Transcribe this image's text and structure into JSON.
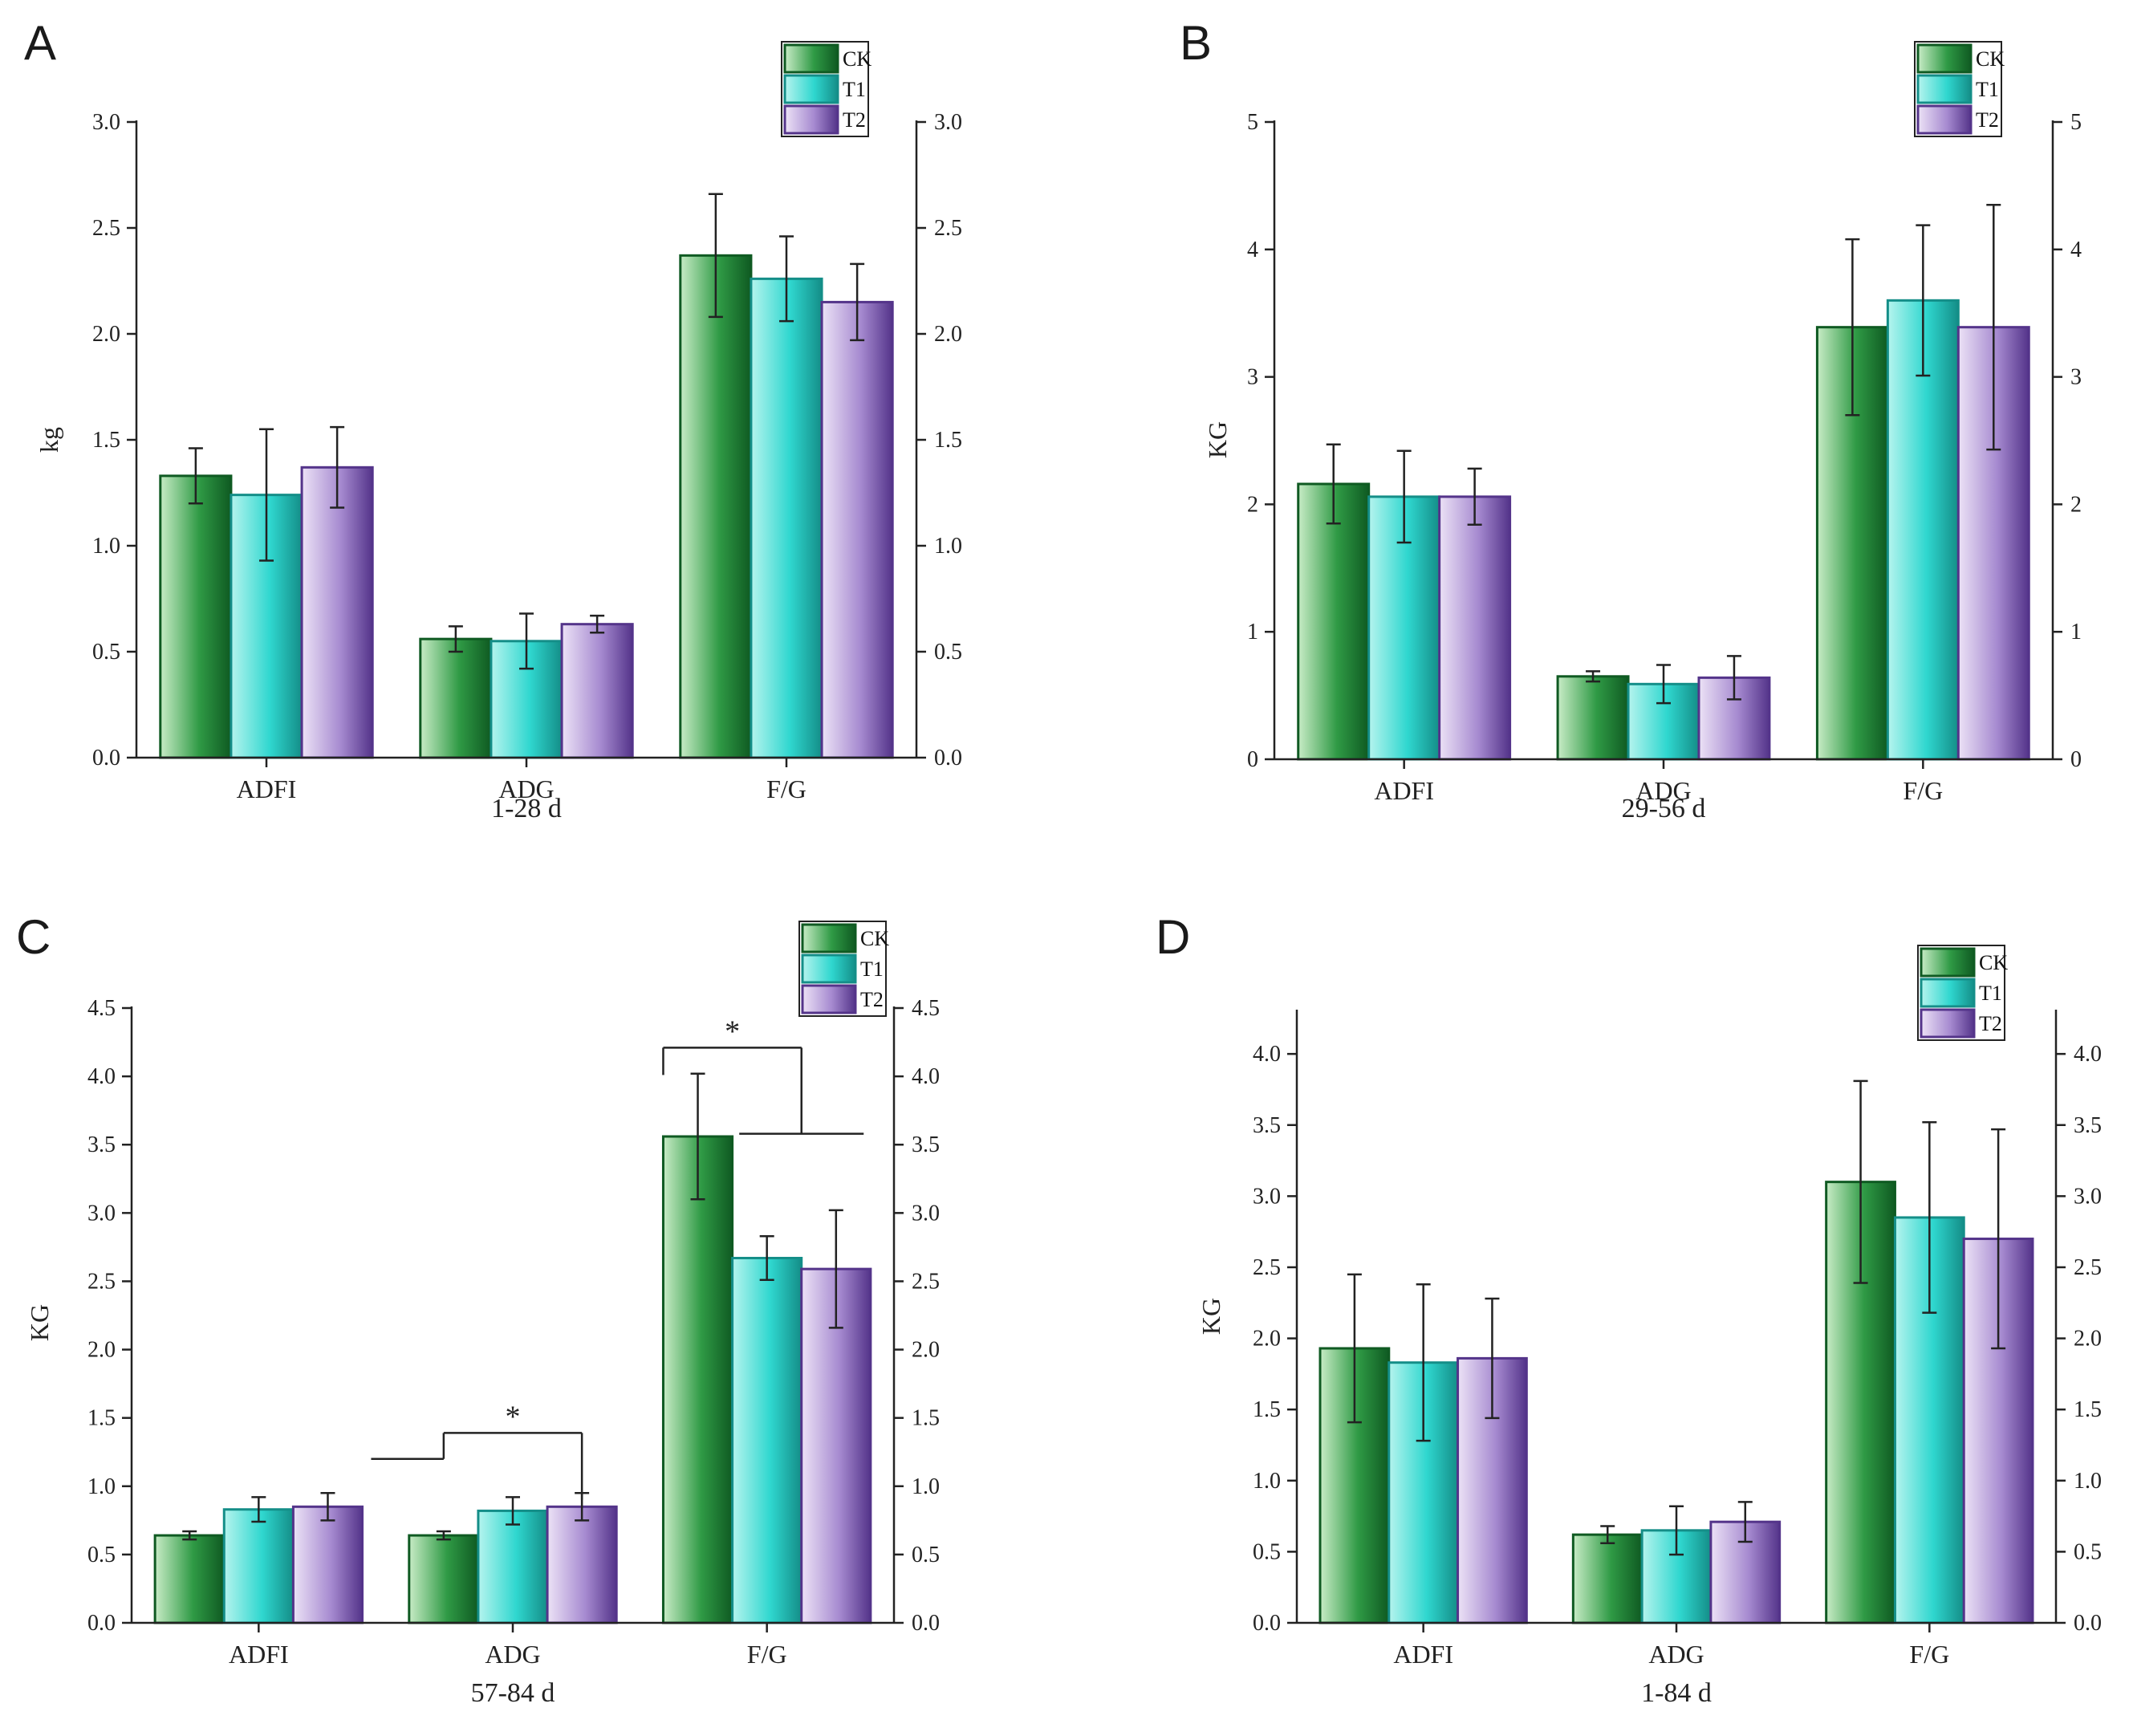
{
  "colors": {
    "CK": [
      "#c8ecc6",
      "#2f9a45",
      "#0f5a22"
    ],
    "T1": [
      "#b5f4ee",
      "#2fd7cf",
      "#148e88"
    ],
    "T2": [
      "#ece2f6",
      "#a68ad0",
      "#54348a"
    ],
    "axis": "#222222"
  },
  "chart_data": [
    {
      "type": "bar",
      "panel": "A",
      "categories": [
        "ADFI",
        "ADG",
        "F/G"
      ],
      "series": [
        {
          "name": "CK",
          "values": [
            1.33,
            0.56,
            2.37
          ],
          "errors": [
            0.13,
            0.06,
            0.29
          ]
        },
        {
          "name": "T1",
          "values": [
            1.24,
            0.55,
            2.26
          ],
          "errors": [
            0.31,
            0.13,
            0.2
          ]
        },
        {
          "name": "T2",
          "values": [
            1.37,
            0.63,
            2.15
          ],
          "errors": [
            0.19,
            0.04,
            0.18
          ]
        }
      ],
      "xlabel": "1-28 d",
      "ylabel": "kg",
      "ylim": [
        0,
        3.0
      ],
      "yticks": [
        "0.0",
        "0.5",
        "1.0",
        "1.5",
        "2.0",
        "2.5",
        "3.0"
      ],
      "legend": "top-right",
      "significance": []
    },
    {
      "type": "bar",
      "panel": "B",
      "categories": [
        "ADFI",
        "ADG",
        "F/G"
      ],
      "series": [
        {
          "name": "CK",
          "values": [
            2.16,
            0.65,
            3.39
          ],
          "errors": [
            0.31,
            0.04,
            0.69
          ]
        },
        {
          "name": "T1",
          "values": [
            2.06,
            0.59,
            3.6
          ],
          "errors": [
            0.36,
            0.15,
            0.59
          ]
        },
        {
          "name": "T2",
          "values": [
            2.06,
            0.64,
            3.39
          ],
          "errors": [
            0.22,
            0.17,
            0.96
          ]
        }
      ],
      "xlabel": "29-56 d",
      "ylabel": "KG",
      "ylim": [
        0,
        5
      ],
      "yticks": [
        "0",
        "1",
        "2",
        "3",
        "4",
        "5"
      ],
      "legend": "top-right",
      "significance": []
    },
    {
      "type": "bar",
      "panel": "C",
      "categories": [
        "ADFI",
        "ADG",
        "F/G"
      ],
      "series": [
        {
          "name": "CK",
          "values": [
            0.64,
            0.64,
            3.56
          ],
          "errors": [
            0.03,
            0.03,
            0.46
          ]
        },
        {
          "name": "T1",
          "values": [
            0.83,
            0.82,
            2.67
          ],
          "errors": [
            0.09,
            0.1,
            0.16
          ]
        },
        {
          "name": "T2",
          "values": [
            0.85,
            0.85,
            2.59
          ],
          "errors": [
            0.1,
            0.1,
            0.43
          ]
        }
      ],
      "xlabel": "57-84 d",
      "ylabel": "KG",
      "ylim": [
        0,
        4.5
      ],
      "yticks": [
        "0.0",
        "0.5",
        "1.0",
        "1.5",
        "2.0",
        "2.5",
        "3.0",
        "3.5",
        "4.0",
        "4.5"
      ],
      "legend": "top-right",
      "significance": [
        {
          "category": 1,
          "label": "*",
          "drop_y": 1.2,
          "top_y": 1.39,
          "base_y": 0.9
        },
        {
          "category": 2,
          "label": "*",
          "drop_y": 3.58,
          "top_y": 4.21,
          "base_y": 4.01
        }
      ]
    },
    {
      "type": "bar",
      "panel": "D",
      "categories": [
        "ADFI",
        "ADG",
        "F/G"
      ],
      "series": [
        {
          "name": "CK",
          "values": [
            1.93,
            0.62,
            3.1
          ],
          "errors": [
            0.52,
            0.06,
            0.71
          ]
        },
        {
          "name": "T1",
          "values": [
            1.83,
            0.65,
            2.85
          ],
          "errors": [
            0.55,
            0.17,
            0.67
          ]
        },
        {
          "name": "T2",
          "values": [
            1.86,
            0.71,
            2.7
          ],
          "errors": [
            0.42,
            0.14,
            0.77
          ]
        }
      ],
      "xlabel": "1-84 d",
      "ylabel": "KG",
      "ylim": [
        0,
        4.3
      ],
      "yticks": [
        "0.0",
        "0.5",
        "1.0",
        "1.5",
        "2.0",
        "2.5",
        "3.0",
        "3.5",
        "4.0"
      ],
      "legend": "top-right",
      "significance": []
    }
  ]
}
